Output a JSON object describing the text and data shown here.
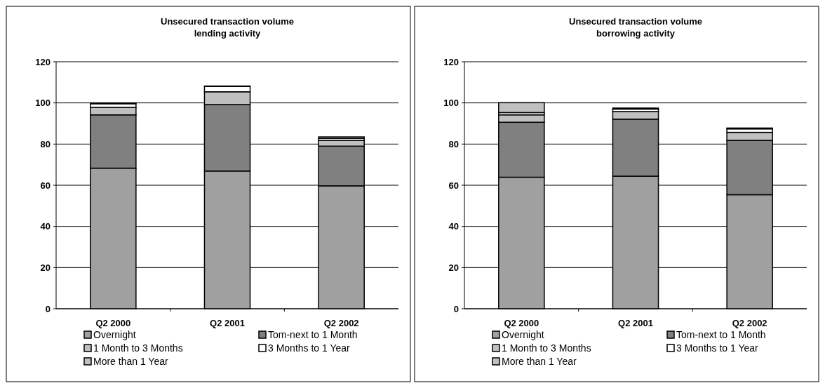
{
  "chart_data": [
    {
      "type": "bar",
      "title": "Unsecured transaction volume\nlending activity",
      "categories": [
        "Q2 2000",
        "Q2 2001",
        "Q2 2002"
      ],
      "stacked": true,
      "ylim": [
        0,
        120
      ],
      "yticks": [
        0,
        20,
        40,
        60,
        80,
        100,
        120
      ],
      "grid": "y",
      "legend": "bottom",
      "series": [
        {
          "name": "Overnight",
          "color": "#a0a0a0",
          "values": [
            68.3,
            66.9,
            59.7
          ]
        },
        {
          "name": "Tom-next to 1 Month",
          "color": "#808080",
          "values": [
            25.9,
            32.3,
            19.3
          ]
        },
        {
          "name": "1 Month to 3 Months",
          "color": "#c0c0c0",
          "values": [
            3.6,
            6.2,
            2.8
          ]
        },
        {
          "name": "3 Months to 1 Year",
          "color": "#ffffff",
          "values": [
            1.8,
            2.6,
            1.0
          ]
        },
        {
          "name": "More than 1 Year",
          "color": "#c0c0c0",
          "values": [
            0.4,
            0.2,
            0.7
          ]
        }
      ]
    },
    {
      "type": "bar",
      "title": "Unsecured transaction volume\nborrowing activity",
      "categories": [
        "Q2 2000",
        "Q2 2001",
        "Q2 2002"
      ],
      "stacked": true,
      "ylim": [
        0,
        120
      ],
      "yticks": [
        0,
        20,
        40,
        60,
        80,
        100,
        120
      ],
      "grid": "y",
      "legend": "bottom",
      "series": [
        {
          "name": "Overnight",
          "color": "#a0a0a0",
          "values": [
            63.9,
            64.4,
            55.4
          ]
        },
        {
          "name": "Tom-next to 1 Month",
          "color": "#808080",
          "values": [
            26.7,
            27.7,
            26.4
          ]
        },
        {
          "name": "1 Month to 3 Months",
          "color": "#c0c0c0",
          "values": [
            3.6,
            3.7,
            3.9
          ]
        },
        {
          "name": "3 Months to 1 Year",
          "color": "#ffffff",
          "values": [
            1.1,
            1.2,
            1.7
          ]
        },
        {
          "name": "More than 1 Year",
          "color": "#c0c0c0",
          "values": [
            4.8,
            0.5,
            0.4
          ]
        }
      ]
    }
  ]
}
